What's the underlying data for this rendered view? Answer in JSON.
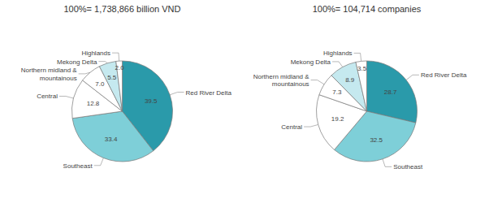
{
  "chart_data": [
    {
      "type": "pie",
      "title": "100%= 1,738,866 billion VND",
      "categories": [
        "Red River Delta",
        "Southeast",
        "Central",
        "Northern midland &\nmountainous",
        "Mekong Delta",
        "Highlands"
      ],
      "values": [
        39.5,
        33.4,
        12.8,
        7.0,
        5.5,
        2.0
      ],
      "value_labels": [
        "39.5",
        "33.4",
        "12.8",
        "7.0",
        "5.5",
        "2.0"
      ],
      "colors": [
        "#2a9aaa",
        "#7ecfd8",
        "#ffffff",
        "#ffffff",
        "#c5e9ef",
        "#ffffff"
      ],
      "data_labels": true
    },
    {
      "type": "pie",
      "title": "100%= 104,714 companies",
      "categories": [
        "Red River Delta",
        "Southeast",
        "Central",
        "Northern midland &\nmountainous",
        "Mekong Delta",
        "Highlands"
      ],
      "values": [
        28.7,
        32.5,
        19.2,
        7.3,
        8.9,
        3.5
      ],
      "value_labels": [
        "28.7",
        "32.5",
        "19.2",
        "7.3",
        "8.9",
        "3.5"
      ],
      "colors": [
        "#2a9aaa",
        "#7ecfd8",
        "#ffffff",
        "#ffffff",
        "#c5e9ef",
        "#ffffff"
      ],
      "data_labels": true
    }
  ]
}
